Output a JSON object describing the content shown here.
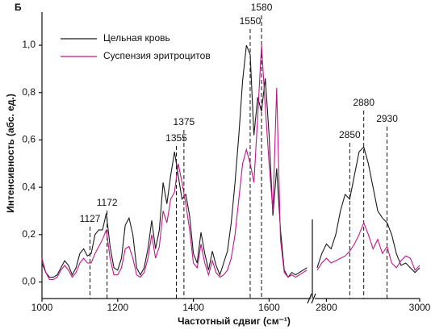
{
  "chart_data": [
    {
      "type": "line",
      "title": "Б",
      "xlabel": "Частотный сдвиг (см⁻¹)",
      "ylabel": "Интенсивность (абс. ед.)",
      "x": [
        1000,
        1010,
        1020,
        1030,
        1040,
        1050,
        1060,
        1070,
        1080,
        1090,
        1100,
        1110,
        1120,
        1130,
        1140,
        1150,
        1160,
        1170,
        1180,
        1190,
        1200,
        1210,
        1220,
        1230,
        1240,
        1250,
        1260,
        1270,
        1280,
        1290,
        1300,
        1310,
        1320,
        1330,
        1340,
        1350,
        1360,
        1370,
        1380,
        1390,
        1400,
        1410,
        1420,
        1430,
        1440,
        1450,
        1460,
        1470,
        1480,
        1490,
        1500,
        1510,
        1520,
        1530,
        1540,
        1550,
        1560,
        1570,
        1580,
        1590,
        1600,
        1610,
        1620,
        1630,
        1640,
        1650,
        1660,
        1670,
        1680,
        1690,
        1700
      ],
      "series": [
        {
          "name": "Цельная кровь",
          "color": "#1a1a1a",
          "values": [
            0.08,
            0.04,
            0.02,
            0.02,
            0.03,
            0.06,
            0.09,
            0.07,
            0.03,
            0.06,
            0.12,
            0.14,
            0.11,
            0.12,
            0.2,
            0.22,
            0.22,
            0.29,
            0.15,
            0.06,
            0.05,
            0.1,
            0.24,
            0.27,
            0.2,
            0.06,
            0.03,
            0.06,
            0.14,
            0.26,
            0.14,
            0.22,
            0.42,
            0.33,
            0.45,
            0.55,
            0.45,
            0.35,
            0.37,
            0.28,
            0.12,
            0.08,
            0.21,
            0.12,
            0.05,
            0.13,
            0.07,
            0.03,
            0.08,
            0.13,
            0.25,
            0.42,
            0.62,
            0.85,
            1.0,
            0.96,
            0.62,
            0.78,
            0.72,
            0.86,
            0.62,
            0.28,
            0.48,
            0.22,
            0.05,
            0.02,
            0.04,
            0.03,
            0.04,
            0.05,
            0.06
          ]
        },
        {
          "name": "Суспензия эритроцитов",
          "color": "#c0168a",
          "values": [
            0.1,
            0.04,
            0.01,
            0.01,
            0.02,
            0.05,
            0.07,
            0.05,
            0.02,
            0.04,
            0.08,
            0.1,
            0.08,
            0.08,
            0.12,
            0.15,
            0.18,
            0.22,
            0.1,
            0.03,
            0.03,
            0.06,
            0.14,
            0.15,
            0.1,
            0.03,
            0.02,
            0.04,
            0.1,
            0.2,
            0.1,
            0.15,
            0.3,
            0.25,
            0.35,
            0.38,
            0.5,
            0.42,
            0.33,
            0.22,
            0.08,
            0.06,
            0.16,
            0.08,
            0.03,
            0.09,
            0.04,
            0.02,
            0.03,
            0.05,
            0.1,
            0.2,
            0.35,
            0.5,
            0.56,
            0.5,
            0.42,
            0.7,
            1.0,
            0.74,
            0.5,
            0.3,
            0.82,
            0.18,
            0.04,
            0.02,
            0.03,
            0.02,
            0.03,
            0.04,
            0.05
          ]
        }
      ],
      "xlim": [
        1000,
        1710
      ],
      "xticks": [
        1000,
        1200,
        1400,
        1600
      ],
      "ylim": [
        -0.07,
        1.14
      ],
      "yticks": [
        {
          "value": 0,
          "label": "0,0"
        },
        {
          "value": 0.2,
          "label": "0,2"
        },
        {
          "value": 0.4,
          "label": "0,4"
        },
        {
          "value": 0.6,
          "label": "0,6"
        },
        {
          "value": 0.8,
          "label": "0,8"
        },
        {
          "value": 1.0,
          "label": "1,0"
        }
      ],
      "peaks": [
        1127,
        1172,
        1355,
        1375,
        1550,
        1580
      ],
      "legend": "upper left"
    },
    {
      "type": "line",
      "x": [
        2780,
        2790,
        2800,
        2810,
        2820,
        2830,
        2840,
        2850,
        2860,
        2870,
        2880,
        2890,
        2900,
        2910,
        2920,
        2930,
        2940,
        2950,
        2960,
        2970,
        2980,
        2990,
        3000
      ],
      "series": [
        {
          "values": [
            0.06,
            0.12,
            0.16,
            0.14,
            0.2,
            0.3,
            0.37,
            0.35,
            0.45,
            0.55,
            0.57,
            0.5,
            0.4,
            0.3,
            0.27,
            0.25,
            0.2,
            0.12,
            0.07,
            0.08,
            0.06,
            0.04,
            0.06
          ]
        },
        {
          "values": [
            0.05,
            0.08,
            0.1,
            0.08,
            0.09,
            0.1,
            0.11,
            0.13,
            0.16,
            0.2,
            0.25,
            0.2,
            0.14,
            0.18,
            0.12,
            0.15,
            0.08,
            0.06,
            0.09,
            0.11,
            0.1,
            0.05,
            0.07
          ]
        }
      ],
      "xlim": [
        2775,
        3000
      ],
      "xticks": [
        2800,
        3000
      ],
      "ylim": [
        -0.07,
        1.14
      ],
      "peaks": [
        2850,
        2880,
        2930
      ]
    }
  ]
}
